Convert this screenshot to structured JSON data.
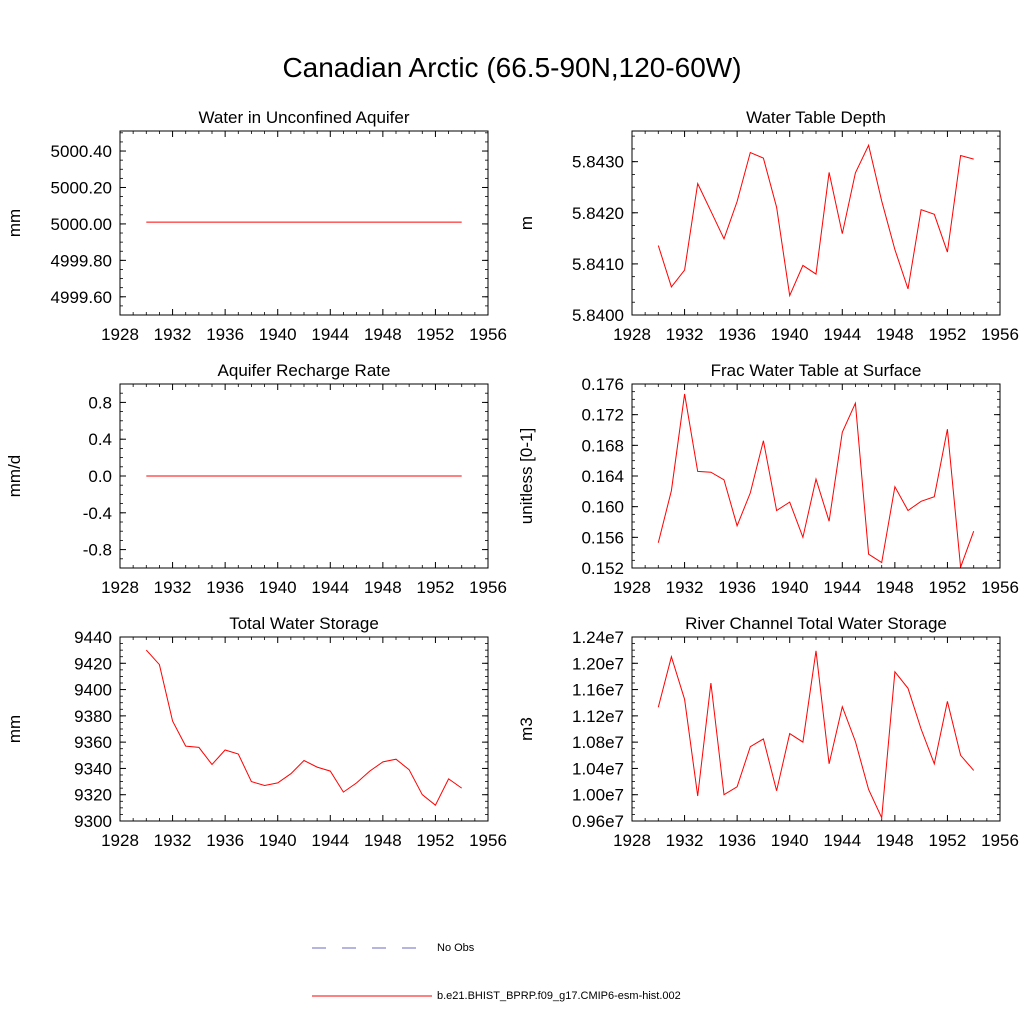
{
  "page": {
    "title": "Canadian Arctic (66.5-90N,120-60W)"
  },
  "legend": {
    "entries": [
      {
        "name": "No Obs",
        "color": "#6b6bbf",
        "style": "dashed"
      },
      {
        "name": "b.e21.BHIST_BPRP.f09_g17.CMIP6-esm-hist.002",
        "color": "#ff0000",
        "style": "solid"
      }
    ]
  },
  "chart_data": [
    {
      "type": "line",
      "title": "Water in Unconfined Aquifer",
      "ylabel": "mm",
      "xlim": [
        1928,
        1956
      ],
      "ylim": [
        4999.5,
        5000.51
      ],
      "xticks": [
        1928,
        1932,
        1936,
        1940,
        1944,
        1948,
        1952,
        1956
      ],
      "yticks": [
        4999.6,
        4999.8,
        5000.0,
        5000.2,
        5000.4
      ],
      "ytick_labels": [
        "4999.60",
        "4999.80",
        "5000.00",
        "5000.20",
        "5000.40"
      ],
      "x": [
        1930,
        1931,
        1932,
        1933,
        1934,
        1935,
        1936,
        1937,
        1938,
        1939,
        1940,
        1941,
        1942,
        1943,
        1944,
        1945,
        1946,
        1947,
        1948,
        1949,
        1950,
        1951,
        1952,
        1953,
        1954
      ],
      "series": [
        {
          "color": "#ff0000",
          "values": [
            5000.01,
            5000.01,
            5000.01,
            5000.01,
            5000.01,
            5000.01,
            5000.01,
            5000.01,
            5000.01,
            5000.01,
            5000.01,
            5000.01,
            5000.01,
            5000.01,
            5000.01,
            5000.01,
            5000.01,
            5000.01,
            5000.01,
            5000.01,
            5000.01,
            5000.01,
            5000.01,
            5000.01,
            5000.01
          ]
        }
      ]
    },
    {
      "type": "line",
      "title": "Water Table Depth",
      "ylabel": "m",
      "xlim": [
        1928,
        1956
      ],
      "ylim": [
        5.84,
        5.8436
      ],
      "xticks": [
        1928,
        1932,
        1936,
        1940,
        1944,
        1948,
        1952,
        1956
      ],
      "yticks": [
        5.84,
        5.841,
        5.842,
        5.843
      ],
      "ytick_labels": [
        "5.8400",
        "5.8410",
        "5.8420",
        "5.8430"
      ],
      "x": [
        1930,
        1931,
        1932,
        1933,
        1934,
        1935,
        1936,
        1937,
        1938,
        1939,
        1940,
        1941,
        1942,
        1943,
        1944,
        1945,
        1946,
        1947,
        1948,
        1949,
        1950,
        1951,
        1952,
        1953,
        1954
      ],
      "series": [
        {
          "color": "#ff0000",
          "values": [
            5.84136,
            5.84055,
            5.84088,
            5.84257,
            5.84203,
            5.84149,
            5.84222,
            5.84318,
            5.84307,
            5.84211,
            5.84038,
            5.84097,
            5.8408,
            5.84279,
            5.84159,
            5.84278,
            5.84332,
            5.84223,
            5.84128,
            5.84051,
            5.84206,
            5.84197,
            5.84123,
            5.84312,
            5.84305
          ]
        }
      ]
    },
    {
      "type": "line",
      "title": "Aquifer Recharge Rate",
      "ylabel": "mm/d",
      "xlim": [
        1928,
        1956
      ],
      "ylim": [
        -1.0,
        1.0
      ],
      "xticks": [
        1928,
        1932,
        1936,
        1940,
        1944,
        1948,
        1952,
        1956
      ],
      "yticks": [
        -0.8,
        -0.4,
        0.0,
        0.4,
        0.8
      ],
      "ytick_labels": [
        "-0.8",
        "-0.4",
        "0.0",
        "0.4",
        "0.8"
      ],
      "x": [
        1930,
        1931,
        1932,
        1933,
        1934,
        1935,
        1936,
        1937,
        1938,
        1939,
        1940,
        1941,
        1942,
        1943,
        1944,
        1945,
        1946,
        1947,
        1948,
        1949,
        1950,
        1951,
        1952,
        1953,
        1954
      ],
      "series": [
        {
          "color": "#ff0000",
          "values": [
            0,
            0,
            0,
            0,
            0,
            0,
            0,
            0,
            0,
            0,
            0,
            0,
            0,
            0,
            0,
            0,
            0,
            0,
            0,
            0,
            0,
            0,
            0,
            0,
            0
          ]
        }
      ]
    },
    {
      "type": "line",
      "title": "Frac Water Table at Surface",
      "ylabel": "unitless [0-1]",
      "xlim": [
        1928,
        1956
      ],
      "ylim": [
        0.152,
        0.176
      ],
      "xticks": [
        1928,
        1932,
        1936,
        1940,
        1944,
        1948,
        1952,
        1956
      ],
      "yticks": [
        0.152,
        0.156,
        0.16,
        0.164,
        0.168,
        0.172,
        0.176
      ],
      "ytick_labels": [
        "0.152",
        "0.156",
        "0.160",
        "0.164",
        "0.168",
        "0.172",
        "0.176"
      ],
      "x": [
        1930,
        1931,
        1932,
        1933,
        1934,
        1935,
        1936,
        1937,
        1938,
        1939,
        1940,
        1941,
        1942,
        1943,
        1944,
        1945,
        1946,
        1947,
        1948,
        1949,
        1950,
        1951,
        1952,
        1953,
        1954
      ],
      "series": [
        {
          "color": "#ff0000",
          "values": [
            0.1553,
            0.1621,
            0.1747,
            0.1646,
            0.1645,
            0.1635,
            0.1575,
            0.1618,
            0.1686,
            0.1595,
            0.1606,
            0.156,
            0.1636,
            0.1581,
            0.1697,
            0.1735,
            0.1538,
            0.1527,
            0.1626,
            0.1595,
            0.1607,
            0.1613,
            0.1701,
            0.1521,
            0.1568
          ]
        }
      ]
    },
    {
      "type": "line",
      "title": "Total Water Storage",
      "ylabel": "mm",
      "xlim": [
        1928,
        1956
      ],
      "ylim": [
        9300,
        9440
      ],
      "xticks": [
        1928,
        1932,
        1936,
        1940,
        1944,
        1948,
        1952,
        1956
      ],
      "yticks": [
        9300,
        9320,
        9340,
        9360,
        9380,
        9400,
        9420,
        9440
      ],
      "ytick_labels": [
        "9300",
        "9320",
        "9340",
        "9360",
        "9380",
        "9400",
        "9420",
        "9440"
      ],
      "x": [
        1930,
        1931,
        1932,
        1933,
        1934,
        1935,
        1936,
        1937,
        1938,
        1939,
        1940,
        1941,
        1942,
        1943,
        1944,
        1945,
        1946,
        1947,
        1948,
        1949,
        1950,
        1951,
        1952,
        1953,
        1954
      ],
      "series": [
        {
          "color": "#ff0000",
          "values": [
            9430,
            9419,
            9376,
            9357,
            9356,
            9343,
            9354,
            9351,
            9330,
            9327,
            9329,
            9336,
            9346,
            9341,
            9338,
            9322,
            9329,
            9338,
            9345,
            9347,
            9339,
            9320,
            9312,
            9332,
            9325
          ]
        }
      ]
    },
    {
      "type": "line",
      "title": "River Channel Total Water Storage",
      "ylabel": "m3",
      "xlim": [
        1928,
        1956
      ],
      "ylim": [
        9600000,
        12400000
      ],
      "xticks": [
        1928,
        1932,
        1936,
        1940,
        1944,
        1948,
        1952,
        1956
      ],
      "yticks": [
        9600000,
        10000000,
        10400000,
        10800000,
        11200000,
        11600000,
        12000000,
        12400000
      ],
      "ytick_labels": [
        "0.96e7",
        "1.00e7",
        "1.04e7",
        "1.08e7",
        "1.12e7",
        "1.16e7",
        "1.20e7",
        "1.24e7"
      ],
      "x": [
        1930,
        1931,
        1932,
        1933,
        1934,
        1935,
        1936,
        1937,
        1938,
        1939,
        1940,
        1941,
        1942,
        1943,
        1944,
        1945,
        1946,
        1947,
        1948,
        1949,
        1950,
        1951,
        1952,
        1953,
        1954
      ],
      "series": [
        {
          "color": "#ff0000",
          "values": [
            11330000,
            12100000,
            11450000,
            9980000,
            11700000,
            10000000,
            10120000,
            10730000,
            10850000,
            10060000,
            10930000,
            10800000,
            12190000,
            10470000,
            11340000,
            10810000,
            10080000,
            9650000,
            11870000,
            11620000,
            11000000,
            10470000,
            11420000,
            10600000,
            10370000
          ]
        }
      ]
    }
  ]
}
